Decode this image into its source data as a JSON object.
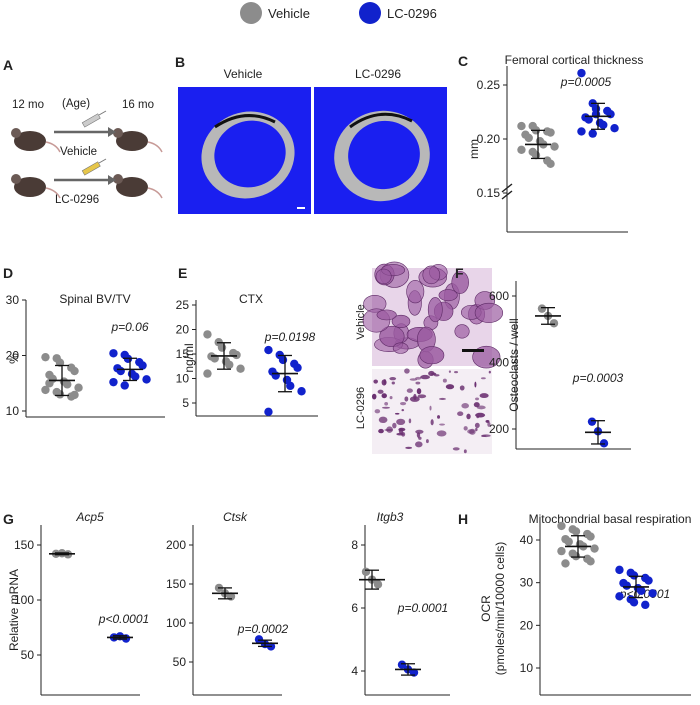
{
  "legend": {
    "items": [
      {
        "label": "Vehicle",
        "color": "#8c8c8c"
      },
      {
        "label": "LC-0296",
        "color": "#1122cc"
      }
    ]
  },
  "colors": {
    "vehicle": "#8c8c8c",
    "treated": "#1122cc",
    "bone_bg": "#1a1ff0",
    "bone": "#b8b8b8",
    "stain": "#8e4f91"
  },
  "panelA": {
    "letter": "A",
    "age_start": "12 mo",
    "age_label": "(Age)",
    "age_end": "16 mo",
    "row1_label": "Vehicle",
    "row2_label": "LC-0296"
  },
  "panelB": {
    "letter": "B",
    "col1_label": "Vehicle",
    "col2_label": "LC-0296"
  },
  "panelF_images": {
    "row1_label": "Vehicle",
    "row2_label": "LC-0296"
  },
  "chart_data": [
    {
      "id": "C",
      "letter": "C",
      "type": "scatter",
      "title": "Femoral cortical thickness",
      "xlabel": "",
      "ylabel": "mm",
      "ylim": [
        0.13,
        0.27
      ],
      "ticks": [
        0.15,
        0.2,
        0.25
      ],
      "tick_labels": [
        "0.15",
        "0.20",
        "0.25"
      ],
      "axis_break": true,
      "pvalue": "p=0.0005",
      "series": [
        {
          "group": "vehicle",
          "mean": 0.195,
          "sd": 0.013,
          "values": [
            0.212,
            0.212,
            0.208,
            0.207,
            0.206,
            0.204,
            0.201,
            0.198,
            0.195,
            0.193,
            0.19,
            0.188,
            0.185,
            0.18,
            0.177
          ]
        },
        {
          "group": "treated",
          "mean": 0.221,
          "sd": 0.012,
          "values": [
            0.261,
            0.233,
            0.228,
            0.226,
            0.223,
            0.22,
            0.218,
            0.215,
            0.213,
            0.21,
            0.207,
            0.205,
            0.223
          ]
        }
      ]
    },
    {
      "id": "D",
      "letter": "D",
      "type": "scatter",
      "title": "Spinal BV/TV",
      "xlabel": "",
      "ylabel": "%",
      "ylim": [
        8,
        30
      ],
      "ticks": [
        10,
        20,
        30
      ],
      "tick_labels": [
        "10",
        "20",
        "30"
      ],
      "pvalue": "p=0.06",
      "series": [
        {
          "group": "vehicle",
          "mean": 15.5,
          "sd": 2.7,
          "values": [
            19.7,
            19.5,
            18.7,
            17.8,
            17.2,
            16.5,
            15.8,
            15.3,
            14.8,
            14.2,
            13.8,
            13.4,
            13.0,
            12.6,
            12.9,
            15.0
          ]
        },
        {
          "group": "treated",
          "mean": 17.5,
          "sd": 2.0,
          "values": [
            20.4,
            20.1,
            19.4,
            18.8,
            18.2,
            17.7,
            17.2,
            16.7,
            16.2,
            15.7,
            15.2,
            14.6
          ]
        }
      ]
    },
    {
      "id": "E",
      "letter": "E",
      "type": "scatter",
      "title": "CTX",
      "xlabel": "",
      "ylabel": "ng/ml",
      "ylim": [
        2,
        25
      ],
      "ticks": [
        5,
        10,
        15,
        20,
        25
      ],
      "tick_labels": [
        "5",
        "10",
        "15",
        "20",
        "25"
      ],
      "pvalue": "p=0.0198",
      "series": [
        {
          "group": "vehicle",
          "mean": 14.6,
          "sd": 2.7,
          "values": [
            19.0,
            17.4,
            16.3,
            15.2,
            14.8,
            14.5,
            14.1,
            13.5,
            12.8,
            12.0,
            11.0
          ]
        },
        {
          "group": "treated",
          "mean": 11.0,
          "sd": 3.7,
          "values": [
            15.8,
            14.8,
            13.8,
            13.0,
            12.2,
            11.4,
            10.6,
            9.7,
            8.5,
            7.4,
            3.2
          ]
        }
      ]
    },
    {
      "id": "F",
      "letter": "F",
      "type": "scatter",
      "title": "",
      "xlabel": "",
      "ylabel": "Osteoclasts / well",
      "ylim": [
        110,
        640
      ],
      "ticks": [
        200,
        400,
        600
      ],
      "tick_labels": [
        "200",
        "400",
        "600"
      ],
      "pvalue": "p=0.0003",
      "series": [
        {
          "group": "vehicle",
          "mean": 540,
          "sd": 25,
          "values": [
            562,
            540,
            518
          ]
        },
        {
          "group": "treated",
          "mean": 190,
          "sd": 35,
          "values": [
            222,
            193,
            157
          ]
        }
      ]
    },
    {
      "id": "G1",
      "letter": "G",
      "type": "scatter",
      "title": "Acp5",
      "italic_title": true,
      "xlabel": "",
      "ylabel": "Relative mRNA",
      "ylim": [
        25,
        150
      ],
      "ticks": [
        50,
        100,
        150
      ],
      "tick_labels": [
        "50",
        "100",
        "150"
      ],
      "pvalue": "p<0.0001",
      "series": [
        {
          "group": "vehicle",
          "mean": 142,
          "sd": 0.8,
          "values": [
            142,
            142.5,
            141.5
          ]
        },
        {
          "group": "treated",
          "mean": 66,
          "sd": 1.5,
          "values": [
            66,
            67,
            65
          ]
        }
      ]
    },
    {
      "id": "G2",
      "letter": "",
      "type": "scatter",
      "title": "Ctsk",
      "italic_title": true,
      "xlabel": "",
      "ylabel": "",
      "ylim": [
        25,
        200
      ],
      "ticks": [
        50,
        100,
        150,
        200
      ],
      "tick_labels": [
        "50",
        "100",
        "150",
        "200"
      ],
      "pvalue": "p=0.0002",
      "series": [
        {
          "group": "vehicle",
          "mean": 138,
          "sd": 7,
          "values": [
            145,
            138,
            134
          ]
        },
        {
          "group": "treated",
          "mean": 74,
          "sd": 4,
          "values": [
            79,
            73,
            70
          ]
        }
      ]
    },
    {
      "id": "G3",
      "letter": "",
      "type": "scatter",
      "title": "Itgb3",
      "italic_title": true,
      "xlabel": "",
      "ylabel": "",
      "ylim": [
        2.2,
        8
      ],
      "ticks": [
        4,
        6,
        8
      ],
      "tick_labels": [
        "4",
        "6",
        "8"
      ],
      "pvalue": "p=0.0001",
      "series": [
        {
          "group": "vehicle",
          "mean": 6.9,
          "sd": 0.3,
          "values": [
            7.15,
            6.9,
            6.75
          ]
        },
        {
          "group": "treated",
          "mean": 4.05,
          "sd": 0.18,
          "values": [
            4.2,
            4.05,
            3.95
          ]
        }
      ]
    },
    {
      "id": "H",
      "letter": "H",
      "type": "scatter",
      "title": "Mitochondrial basal respiration",
      "xlabel": "",
      "ylabel": "OCR (pmoles/min/10000 cells)",
      "ylim": [
        3,
        45
      ],
      "ticks": [
        10,
        20,
        30,
        40
      ],
      "tick_labels": [
        "10",
        "20",
        "30",
        "40"
      ],
      "pvalue": "p<0.0001",
      "series": [
        {
          "group": "vehicle",
          "mean": 38.5,
          "sd": 2.5,
          "values": [
            43.3,
            42.5,
            42.0,
            41.4,
            40.8,
            40.2,
            39.6,
            39.0,
            38.5,
            38.0,
            37.4,
            36.8,
            36.2,
            35.6,
            35.0,
            34.5
          ]
        },
        {
          "group": "treated",
          "mean": 29.0,
          "sd": 2.5,
          "values": [
            33.0,
            32.3,
            31.7,
            31.1,
            30.5,
            29.9,
            29.3,
            28.7,
            28.1,
            27.5,
            26.8,
            26.1,
            25.4,
            24.8
          ]
        }
      ]
    }
  ]
}
